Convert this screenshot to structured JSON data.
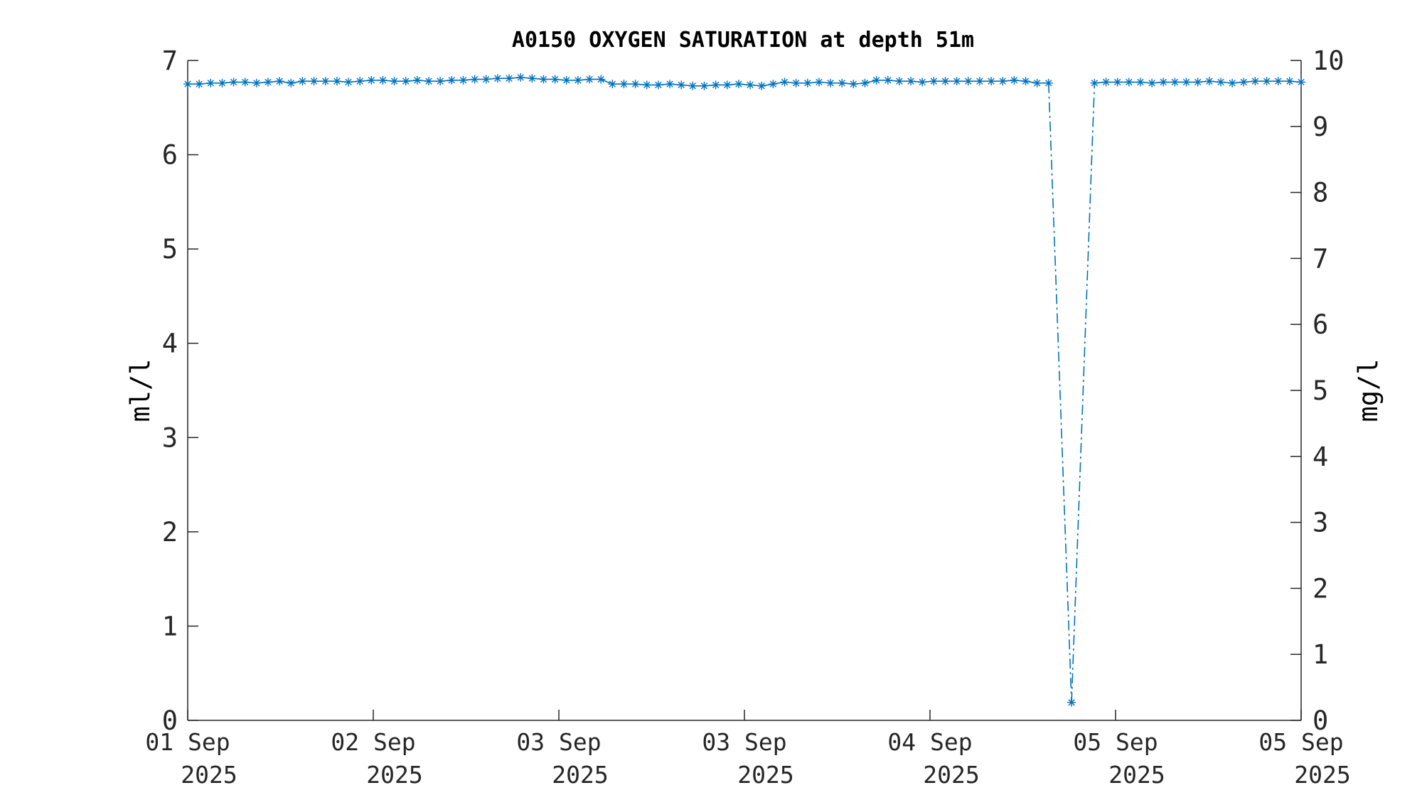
{
  "chart_data": {
    "type": "line",
    "title": "A0150 OXYGEN SATURATION at depth 51m",
    "ylabel": "ml/l",
    "ylabel_right": "mg/l",
    "xlabel": "",
    "ylim": [
      0,
      7
    ],
    "ylim_right": [
      0,
      10
    ],
    "yticks": [
      "0",
      "1",
      "2",
      "3",
      "4",
      "5",
      "6",
      "7"
    ],
    "yticks_right": [
      "0",
      "1",
      "2",
      "3",
      "4",
      "5",
      "6",
      "7",
      "8",
      "9",
      "10"
    ],
    "xticks": [
      {
        "line1": "01 Sep",
        "line2": "2025"
      },
      {
        "line1": "02 Sep",
        "line2": "2025"
      },
      {
        "line1": "03 Sep",
        "line2": "2025"
      },
      {
        "line1": "03 Sep",
        "line2": "2025"
      },
      {
        "line1": "04 Sep",
        "line2": "2025"
      },
      {
        "line1": "05 Sep",
        "line2": "2025"
      },
      {
        "line1": "05 Sep",
        "line2": "2025"
      }
    ],
    "grid": false,
    "line_style": "dash-dot",
    "marker": "asterisk",
    "series": [
      {
        "color": "#0072BD",
        "values": [
          6.75,
          6.75,
          6.76,
          6.76,
          6.77,
          6.77,
          6.76,
          6.77,
          6.78,
          6.76,
          6.78,
          6.78,
          6.78,
          6.78,
          6.77,
          6.78,
          6.79,
          6.79,
          6.78,
          6.78,
          6.79,
          6.78,
          6.78,
          6.79,
          6.79,
          6.8,
          6.8,
          6.81,
          6.81,
          6.82,
          6.81,
          6.8,
          6.8,
          6.79,
          6.79,
          6.8,
          6.8,
          6.75,
          6.75,
          6.75,
          6.74,
          6.74,
          6.75,
          6.74,
          6.73,
          6.73,
          6.74,
          6.74,
          6.75,
          6.74,
          6.73,
          6.75,
          6.77,
          6.76,
          6.76,
          6.77,
          6.76,
          6.76,
          6.75,
          6.76,
          6.79,
          6.79,
          6.78,
          6.78,
          6.77,
          6.78,
          6.78,
          6.78,
          6.78,
          6.78,
          6.78,
          6.78,
          6.79,
          6.78,
          6.76,
          6.76,
          null,
          0.19,
          null,
          6.76,
          6.77,
          6.77,
          6.77,
          6.77,
          6.76,
          6.77,
          6.77,
          6.77,
          6.77,
          6.78,
          6.77,
          6.76,
          6.77,
          6.78,
          6.78,
          6.78,
          6.78,
          6.77
        ]
      }
    ]
  }
}
